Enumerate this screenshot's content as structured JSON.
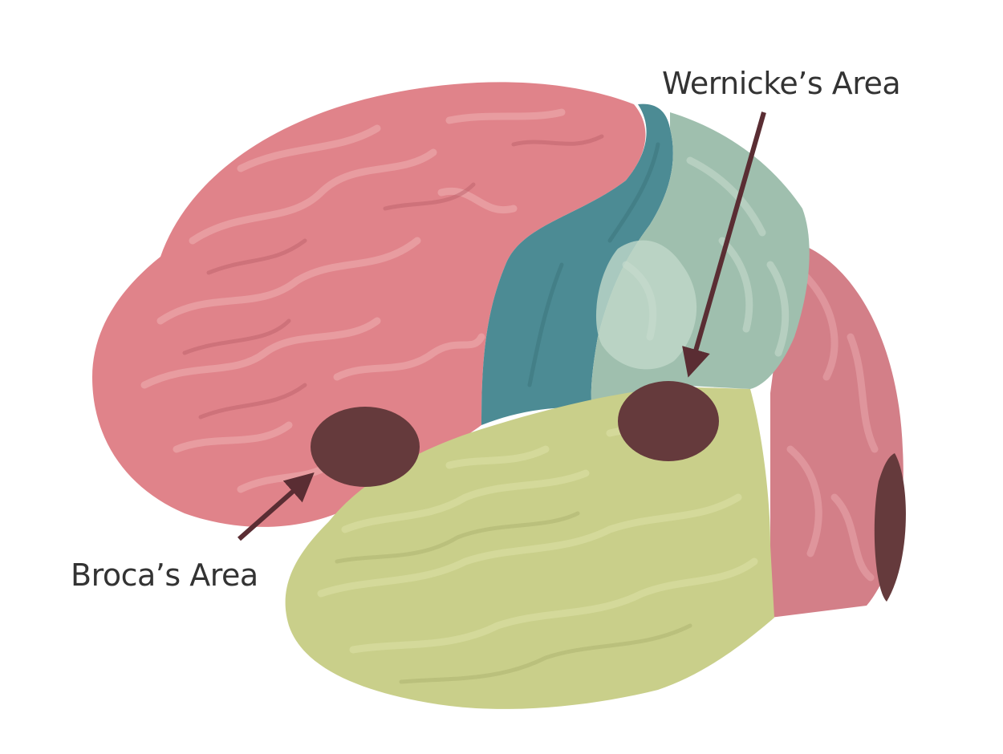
{
  "labels": {
    "wernicke": "Wernicke’s Area",
    "broca": "Broca’s Area"
  },
  "colors": {
    "frontal": "#e0838a",
    "frontal_light": "#eaa2a6",
    "frontal_dark": "#c86a72",
    "motor": "#4c8b94",
    "parietal": "#9fbfae",
    "parietal_light": "#c1d8c9",
    "temporal": "#c9cf8a",
    "temporal_light": "#dde2a8",
    "occipital": "#d37f88",
    "spot": "#653a3c",
    "arrow": "#5a2d33",
    "text": "#333333"
  }
}
